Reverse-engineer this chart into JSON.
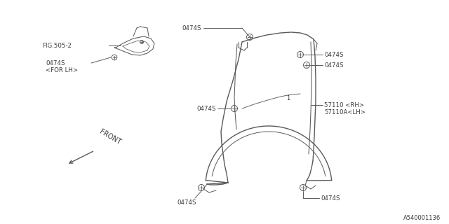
{
  "bg_color": "#ffffff",
  "line_color": "#5a5a5a",
  "text_color": "#3a3a3a",
  "diagram_id": "A540001136",
  "labels": {
    "fig505": "FIG.505-2",
    "for_lh": "<FOR LH>",
    "front": "FRONT",
    "part_0474s": "0474S",
    "part_57110rh": "57110 <RH>",
    "part_57110alh": "57110A<LH>"
  },
  "figsize": [
    6.4,
    3.2
  ],
  "dpi": 100
}
